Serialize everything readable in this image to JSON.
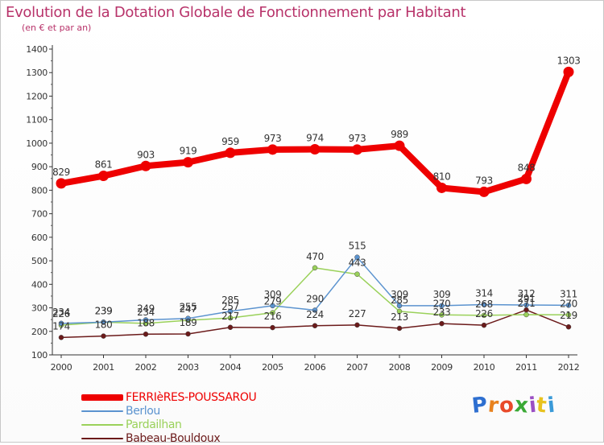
{
  "header": {
    "title": "Evolution de la Dotation Globale de Fonctionnement par Habitant",
    "subtitle": "(en € et par an)"
  },
  "logo": {
    "text": "Proxiti",
    "letters": [
      "P",
      "r",
      "o",
      "x",
      "i",
      "t",
      "i"
    ],
    "colors": [
      "#2e6fd0",
      "#e8821e",
      "#e84a2a",
      "#3aa935",
      "#9b4fc4",
      "#e8c21e",
      "#3a9ad8"
    ]
  },
  "chart_data": {
    "type": "line",
    "title": "Evolution de la Dotation Globale de Fonctionnement par Habitant",
    "subtitle": "(en € et par an)",
    "x": [
      "2000",
      "2001",
      "2002",
      "2003",
      "2004",
      "2005",
      "2006",
      "2007",
      "2008",
      "2009",
      "2010",
      "2011",
      "2012"
    ],
    "ylim": [
      100,
      1400
    ],
    "yticks": [
      100,
      200,
      300,
      400,
      500,
      600,
      700,
      800,
      900,
      1000,
      1100,
      1200,
      1300,
      1400
    ],
    "grid": false,
    "legend_position": "bottom-left",
    "series": [
      {
        "name": "FERRIèRES-POUSSAROU",
        "color": "#ee0000",
        "values": [
          829,
          861,
          903,
          919,
          959,
          973,
          974,
          973,
          989,
          810,
          793,
          848,
          1303
        ],
        "labels": [
          "829",
          "861",
          "903",
          "919",
          "959",
          "973",
          "974",
          "973",
          "989",
          "810",
          "793",
          "848",
          "1303"
        ]
      },
      {
        "name": "Berlou",
        "color": "#5b93cf",
        "values": [
          234,
          239,
          249,
          255,
          285,
          309,
          290,
          515,
          309,
          309,
          314,
          312,
          311
        ],
        "labels": [
          "234",
          "239",
          "249",
          "255",
          "285",
          "309",
          "290",
          "515",
          "309",
          "309",
          "314",
          "312",
          "311"
        ]
      },
      {
        "name": "Pardailhan",
        "color": "#9ad15a",
        "values": [
          226,
          239,
          234,
          247,
          257,
          279,
          470,
          443,
          285,
          270,
          268,
          271,
          270
        ],
        "labels": [
          "226",
          "239",
          "234",
          "247",
          "257",
          "279",
          "470",
          "443",
          "285",
          "270",
          "268",
          "271",
          "270"
        ]
      },
      {
        "name": "Babeau-Bouldoux",
        "color": "#6b1a1a",
        "values": [
          174,
          180,
          188,
          189,
          217,
          216,
          224,
          227,
          213,
          233,
          226,
          291,
          219
        ],
        "labels": [
          "174",
          "180",
          "188",
          "189",
          "217",
          "216",
          "224",
          "227",
          "213",
          "233",
          "226",
          "291",
          "219"
        ]
      }
    ]
  }
}
